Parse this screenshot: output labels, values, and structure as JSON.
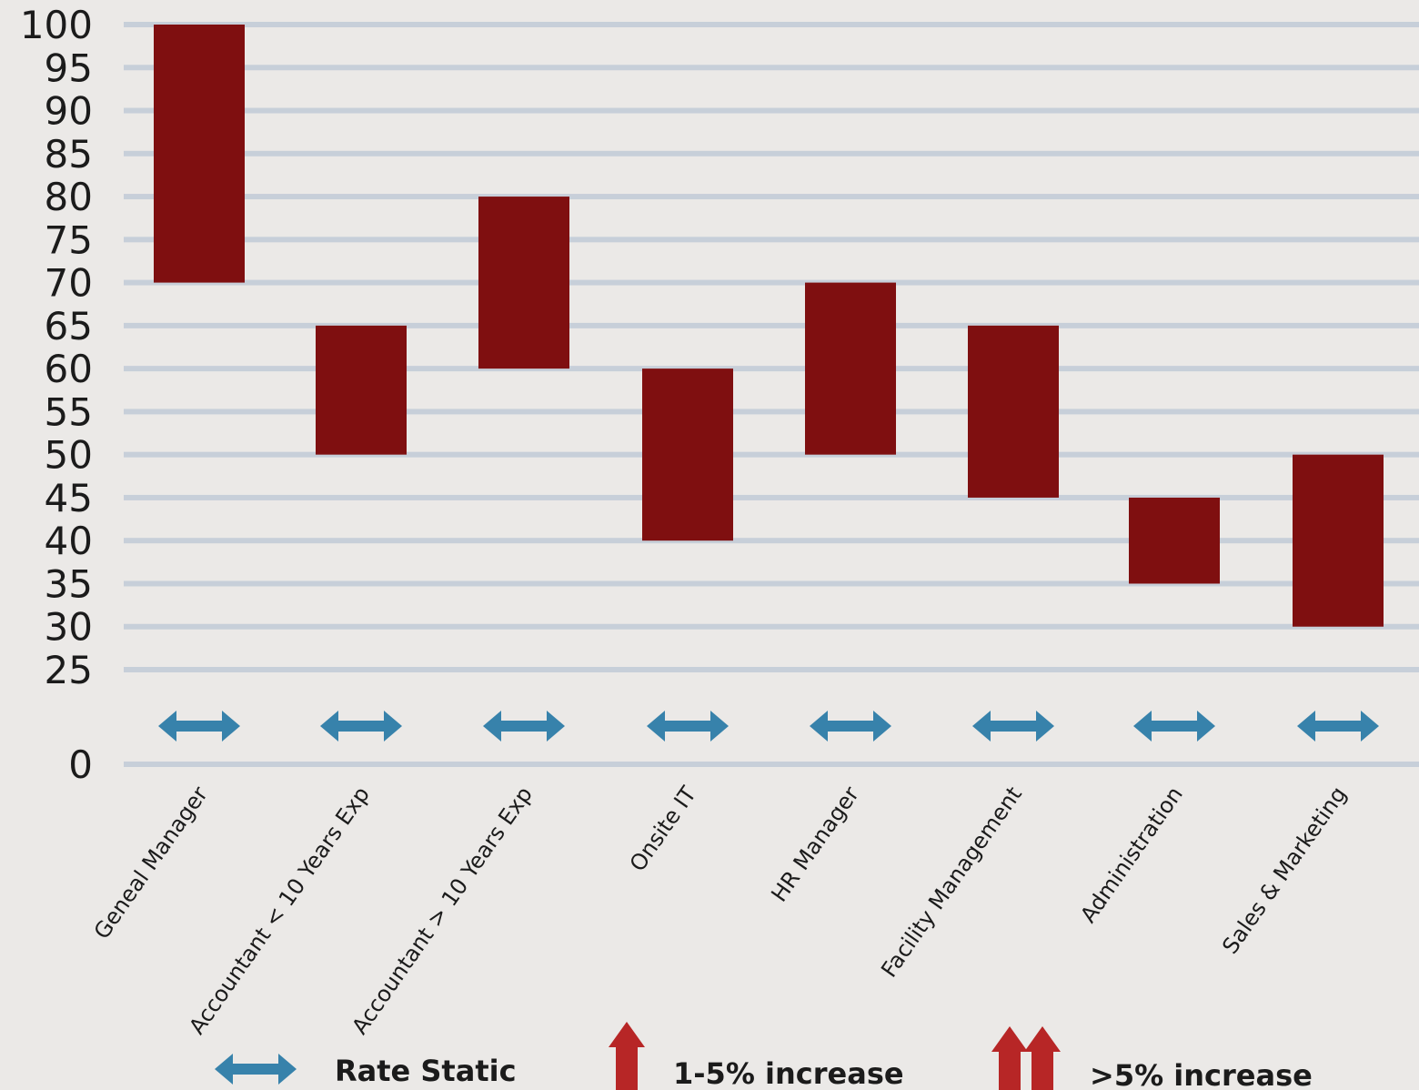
{
  "chart_data": {
    "type": "bar",
    "subtype": "floating-range",
    "categories": [
      "Geneal Manager",
      "Accountant < 10 Years Exp",
      "Accountant > 10 Years Exp",
      "Onsite IT",
      "HR Manager",
      "Facility Management",
      "Administration",
      "Sales & Marketing"
    ],
    "ranges": [
      [
        70,
        100
      ],
      [
        50,
        65
      ],
      [
        60,
        80
      ],
      [
        40,
        60
      ],
      [
        50,
        70
      ],
      [
        45,
        65
      ],
      [
        35,
        45
      ],
      [
        30,
        50
      ]
    ],
    "trend": [
      "static",
      "static",
      "static",
      "static",
      "static",
      "static",
      "static",
      "static"
    ],
    "y_ticks": [
      0,
      25,
      30,
      35,
      40,
      45,
      50,
      55,
      60,
      65,
      70,
      75,
      80,
      85,
      90,
      95,
      100
    ],
    "ylim": [
      0,
      100
    ],
    "y_axis_break": [
      0,
      25
    ],
    "grid": true,
    "legend_position": "bottom",
    "legend": [
      {
        "key": "static",
        "label": "Rate Static"
      },
      {
        "key": "up",
        "label": "1-5% increase"
      },
      {
        "key": "up2",
        "label": ">5% increase"
      }
    ],
    "colors": {
      "bar": "#7f0f10",
      "grid": "#c7cfd9",
      "static_arrow": "#3782ab",
      "increase_arrow": "#b72626",
      "background": "#ebe9e7"
    }
  }
}
